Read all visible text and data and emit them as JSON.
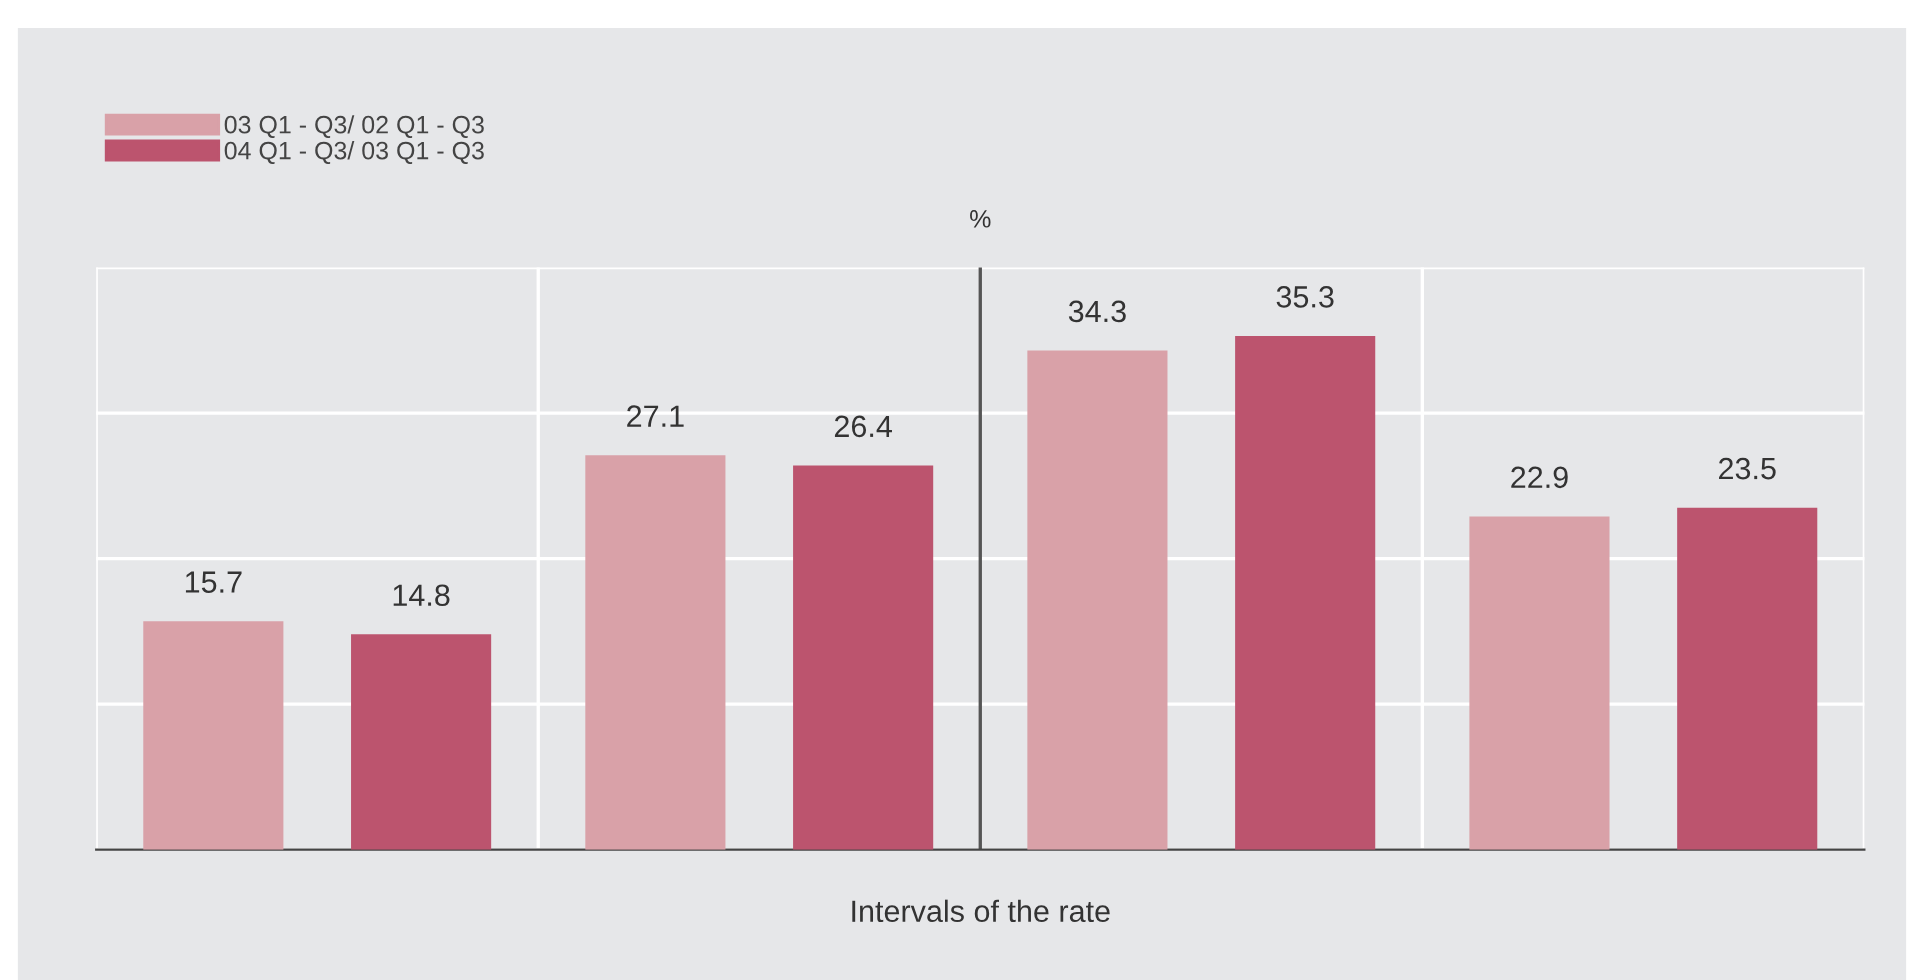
{
  "chart_data": {
    "type": "bar",
    "categories": [
      null,
      null,
      null,
      null
    ],
    "series": [
      {
        "name": "03 Q1 - Q3/ 02 Q1 - Q3",
        "color": "#d9a1a8",
        "values": [
          15.7,
          27.1,
          34.3,
          22.9
        ]
      },
      {
        "name": "04 Q1 - Q3/ 03 Q1 - Q3",
        "color": "#bc546e",
        "values": [
          14.8,
          26.4,
          35.3,
          23.5
        ]
      }
    ],
    "ylabel": "%",
    "xlabel": "Intervals of the rate",
    "ylim": [
      0,
      40
    ],
    "yticks": [
      {
        "value": 0,
        "label": null
      },
      {
        "value": 10,
        "label": null
      },
      {
        "value": 20,
        "label": null
      },
      {
        "value": 30,
        "label": null
      },
      {
        "value": 40,
        "label": null
      }
    ],
    "grid": true,
    "data_labels": true,
    "legend": "top left",
    "tick_labels": false
  }
}
